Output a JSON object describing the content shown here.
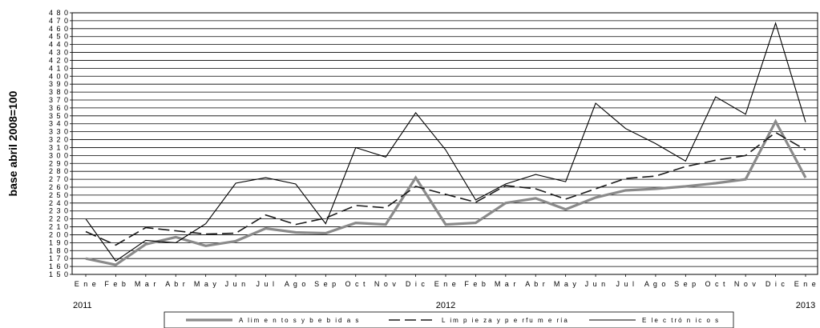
{
  "chart_data": {
    "type": "line",
    "ylabel": "base abril 2008=100",
    "ylim": [
      150,
      480
    ],
    "ytick_step": 10,
    "grid": true,
    "legend_position": "bottom",
    "categories": [
      "Ene",
      "Feb",
      "Mar",
      "Abr",
      "May",
      "Jun",
      "Jul",
      "Ago",
      "Sep",
      "Oct",
      "Nov",
      "Dic",
      "Ene",
      "Feb",
      "Mar",
      "Abr",
      "May",
      "Jun",
      "Jul",
      "Ago",
      "Sep",
      "Oct",
      "Nov",
      "Dic",
      "Ene"
    ],
    "tick_labels": [
      "E n e",
      "F e b",
      "M a r",
      "A b r",
      "M a y",
      "J u n",
      "J u l",
      "A g o",
      "S e p",
      "O c t",
      "N o v",
      "D i c",
      "E n e",
      "F e b",
      "M a r",
      "A b r",
      "M a y",
      "J u n",
      "J u l",
      "A g o",
      "S e p",
      "O c t",
      "N o v",
      "D i c",
      "E n e"
    ],
    "years": [
      {
        "label": "2011",
        "at_index": 0
      },
      {
        "label": "2012",
        "at_index": 12
      },
      {
        "label": "2013",
        "at_index": 24
      }
    ],
    "series": [
      {
        "name": "Alimentos y bebidas",
        "legend_text": "A lim  e n to s  y  b e b id a s",
        "color": "#8a8a8a",
        "style": "thick",
        "values": [
          170,
          162,
          188,
          197,
          186,
          192,
          208,
          203,
          202,
          215,
          213,
          272,
          213,
          215,
          240,
          246,
          232,
          247,
          256,
          258,
          261,
          265,
          270,
          343,
          272
        ]
      },
      {
        "name": "Limpieza y perfumería",
        "legend_text": "L im  p ie za  y  p e rfu m  e ría",
        "color": "#1a1a1a",
        "style": "dashed",
        "values": [
          204,
          187,
          209,
          205,
          201,
          202,
          225,
          213,
          221,
          237,
          234,
          261,
          251,
          241,
          262,
          258,
          245,
          258,
          271,
          274,
          286,
          294,
          300,
          329,
          307
        ]
      },
      {
        "name": "Electrónicos",
        "legend_text": "E le c tró n ic o s",
        "color": "#000000",
        "style": "thin",
        "values": [
          220,
          167,
          193,
          190,
          214,
          265,
          272,
          264,
          214,
          310,
          298,
          354,
          307,
          244,
          264,
          276,
          267,
          366,
          334,
          315,
          293,
          374,
          352,
          467,
          342
        ]
      }
    ]
  }
}
